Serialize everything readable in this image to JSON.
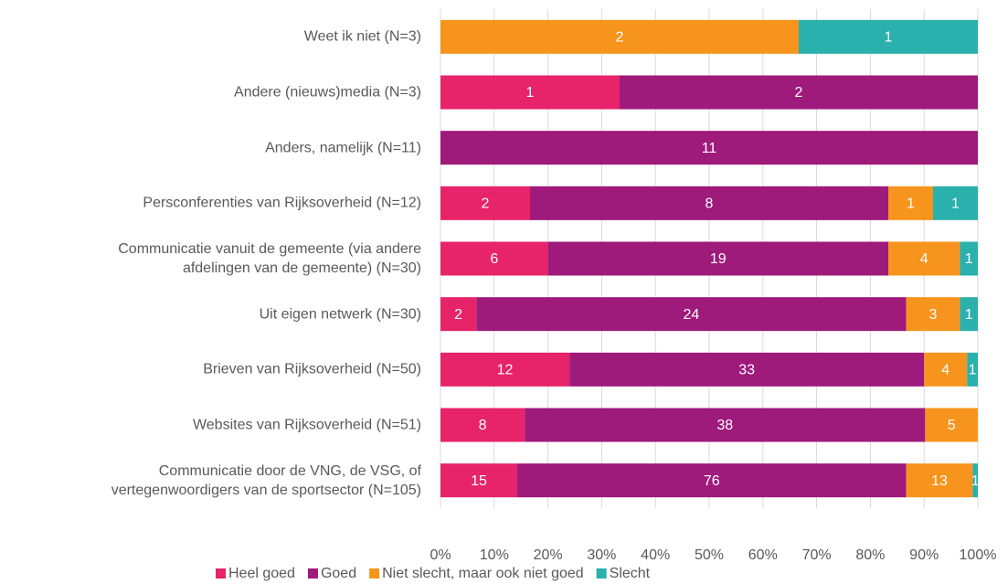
{
  "chart_data": {
    "type": "bar",
    "orientation": "horizontal",
    "stacking": "percent",
    "categories": [
      "Weet ik niet (N=3)",
      "Andere (nieuws)media (N=3)",
      "Anders, namelijk (N=11)",
      "Persconferenties van Rijksoverheid (N=12)",
      "Communicatie vanuit de gemeente (via andere afdelingen van de gemeente) (N=30)",
      "Uit eigen netwerk (N=30)",
      "Brieven van Rijksoverheid (N=50)",
      "Websites van Rijksoverheid (N=51)",
      "Communicatie door de VNG, de VSG, of vertegenwoordigers van de sportsector (N=105)"
    ],
    "series": [
      {
        "name": "Heel goed",
        "color": "#e7236a",
        "values": [
          0,
          1,
          0,
          2,
          6,
          2,
          12,
          8,
          15
        ]
      },
      {
        "name": "Goed",
        "color": "#9e1a7b",
        "values": [
          0,
          2,
          11,
          8,
          19,
          24,
          33,
          38,
          76
        ]
      },
      {
        "name": "Niet slecht, maar ook niet goed",
        "color": "#f7941d",
        "values": [
          2,
          0,
          0,
          1,
          4,
          3,
          4,
          5,
          13
        ]
      },
      {
        "name": "Slecht",
        "color": "#2ab0ad",
        "values": [
          1,
          0,
          0,
          1,
          1,
          1,
          1,
          0,
          1
        ]
      }
    ],
    "xlim": [
      0,
      100
    ],
    "xticks": [
      {
        "value": 0,
        "label": "0%"
      },
      {
        "value": 10,
        "label": "10%"
      },
      {
        "value": 20,
        "label": "20%"
      },
      {
        "value": 30,
        "label": "30%"
      },
      {
        "value": 40,
        "label": "40%"
      },
      {
        "value": 50,
        "label": "50%"
      },
      {
        "value": 60,
        "label": "60%"
      },
      {
        "value": 70,
        "label": "70%"
      },
      {
        "value": 80,
        "label": "80%"
      },
      {
        "value": 90,
        "label": "90%"
      },
      {
        "value": 100,
        "label": "100%"
      }
    ],
    "grid": true,
    "legend": "bottom"
  }
}
